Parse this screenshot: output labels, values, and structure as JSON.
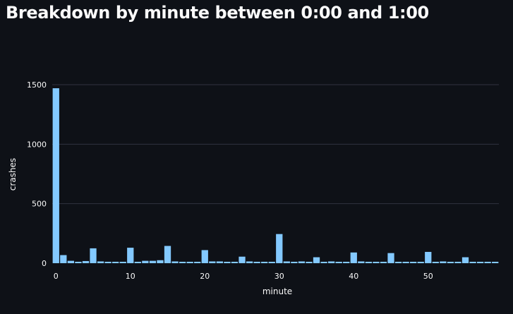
{
  "page": {
    "title": "Breakdown by minute between 0:00 and 1:00"
  },
  "chart_data": {
    "type": "bar",
    "x_axis_label": "minute",
    "y_axis_label": "crashes",
    "x_domain": [
      0,
      59
    ],
    "ylim": [
      0,
      1500
    ],
    "x_ticks": [
      0,
      10,
      20,
      30,
      40,
      50
    ],
    "y_ticks": [
      0,
      500,
      1000,
      1500
    ],
    "bar_color": "#83c9ff",
    "gridlines": "horizontal",
    "series": [
      {
        "x": [
          0,
          1,
          2,
          3,
          4,
          5,
          6,
          7,
          8,
          9,
          10,
          11,
          12,
          13,
          14,
          15,
          16,
          17,
          18,
          19,
          20,
          21,
          22,
          23,
          24,
          25,
          26,
          27,
          28,
          29,
          30,
          31,
          32,
          33,
          34,
          35,
          36,
          37,
          38,
          39,
          40,
          41,
          42,
          43,
          44,
          45,
          46,
          47,
          48,
          49,
          50,
          51,
          52,
          53,
          54,
          55,
          56,
          57,
          58,
          59
        ],
        "values": [
          1470,
          68,
          20,
          12,
          18,
          125,
          15,
          12,
          12,
          12,
          130,
          12,
          20,
          20,
          25,
          145,
          15,
          12,
          12,
          12,
          110,
          15,
          15,
          12,
          12,
          55,
          15,
          12,
          12,
          12,
          245,
          15,
          12,
          15,
          12,
          50,
          12,
          15,
          12,
          12,
          90,
          15,
          12,
          12,
          12,
          85,
          12,
          12,
          12,
          12,
          95,
          12,
          15,
          12,
          12,
          50,
          12,
          12,
          12,
          12
        ]
      }
    ]
  }
}
